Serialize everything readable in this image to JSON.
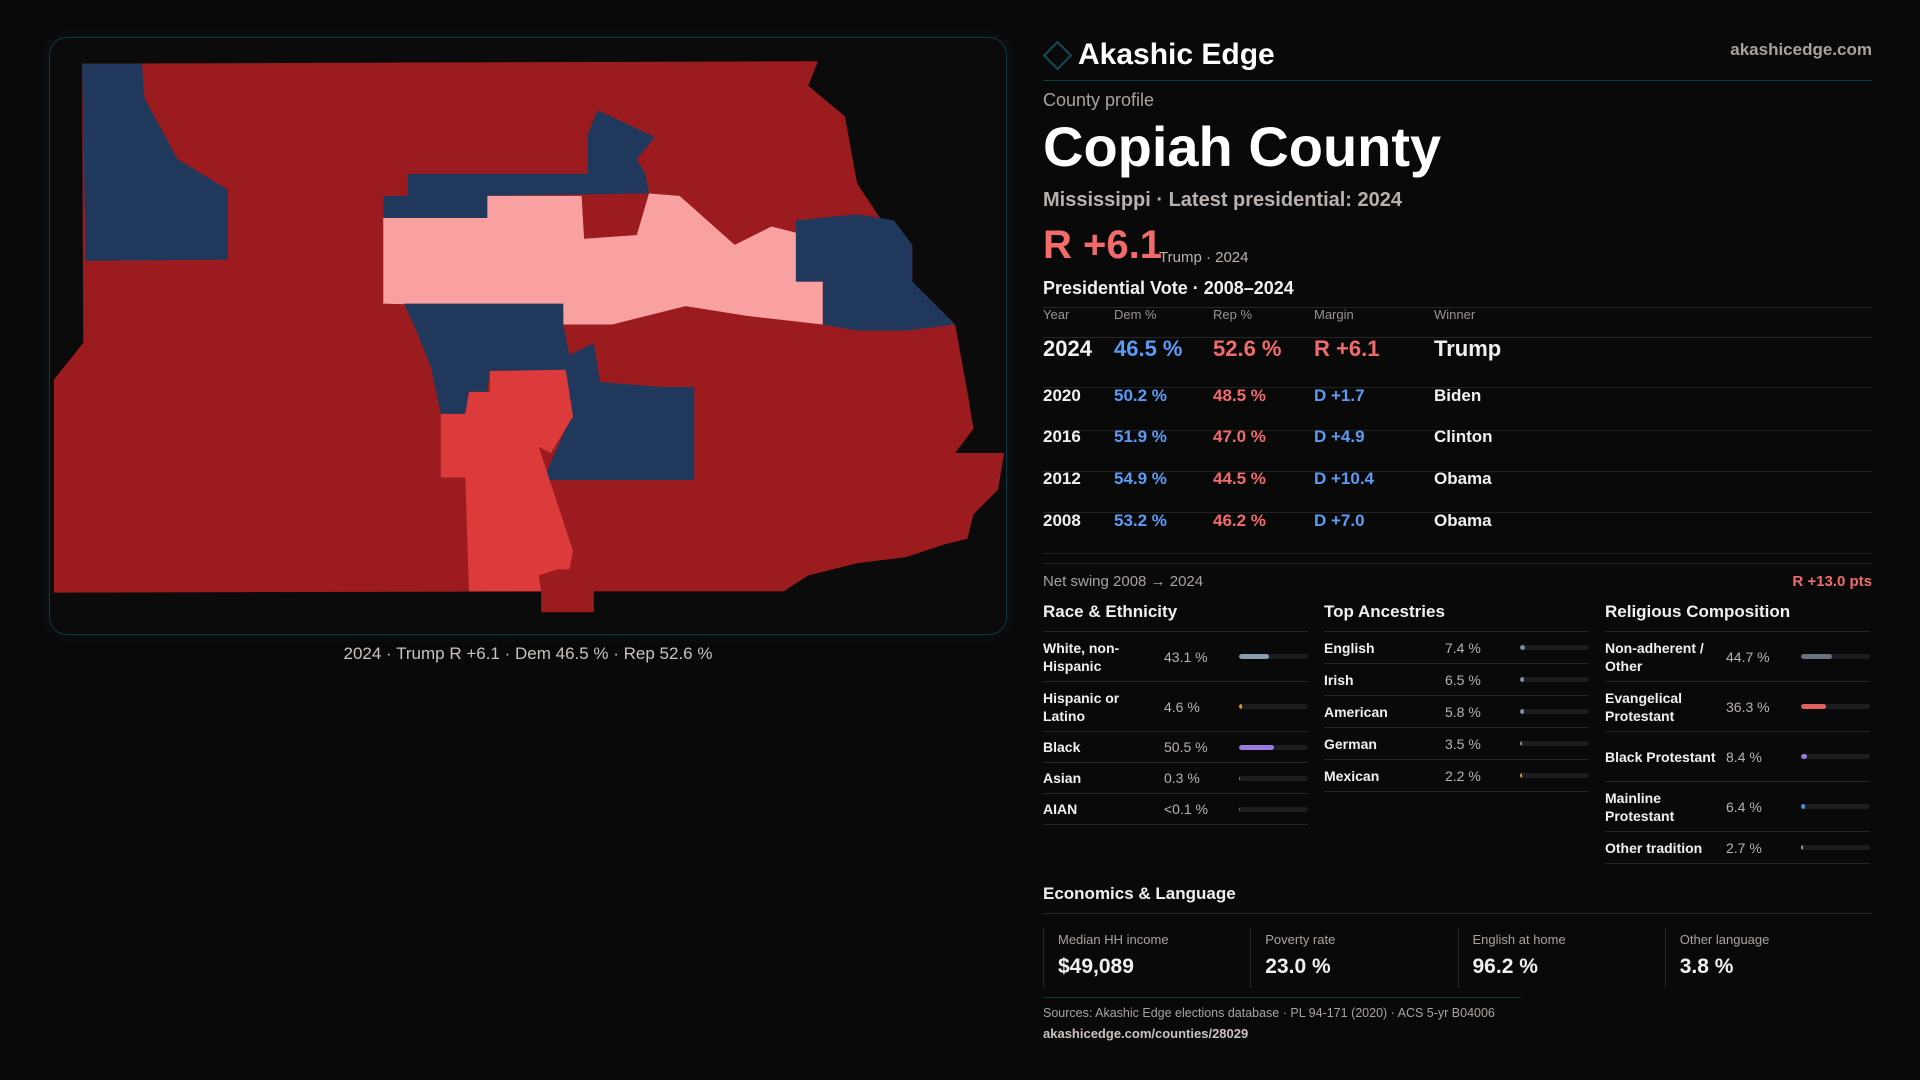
{
  "brand": {
    "name": "Akashic Edge",
    "site": "akashicedge.com",
    "logo_icon": "diamond-icon"
  },
  "profile": {
    "kicker": "County profile",
    "title": "Copiah County",
    "subtitle": "Mississippi · Latest presidential: 2024",
    "margin": "R +6.1",
    "margin_note": "Trump · 2024"
  },
  "vote": {
    "heading": "Presidential Vote · 2008–2024",
    "columns": [
      "Year",
      "Dem %",
      "Rep %",
      "Margin",
      "Winner"
    ],
    "rows": [
      {
        "year": "2024",
        "dem": "46.5 %",
        "rep": "52.6 %",
        "margin": "R +6.1",
        "winner": "Trump",
        "party": "R"
      },
      {
        "year": "2020",
        "dem": "50.2 %",
        "rep": "48.5 %",
        "margin": "D +1.7",
        "winner": "Biden",
        "party": "D"
      },
      {
        "year": "2016",
        "dem": "51.9 %",
        "rep": "47.0 %",
        "margin": "D +4.9",
        "winner": "Clinton",
        "party": "D"
      },
      {
        "year": "2012",
        "dem": "54.9 %",
        "rep": "44.5 %",
        "margin": "D +10.4",
        "winner": "Obama",
        "party": "D"
      },
      {
        "year": "2008",
        "dem": "53.2 %",
        "rep": "46.2 %",
        "margin": "D +7.0",
        "winner": "Obama",
        "party": "D"
      }
    ],
    "swing_label": "Net swing 2008 → 2024",
    "swing_value": "R +13.0 pts"
  },
  "sections": [
    {
      "title": "Race & Ethnicity",
      "rows": [
        {
          "name": "White, non-Hispanic",
          "value": "43.1 %",
          "pct": 43.1,
          "color": "#8a9bb0"
        },
        {
          "name": "Hispanic or Latino",
          "value": "4.6 %",
          "pct": 4.6,
          "color": "#e8961e"
        },
        {
          "name": "Black",
          "value": "50.5 %",
          "pct": 50.5,
          "color": "#9a7ce0"
        },
        {
          "name": "Asian",
          "value": "0.3 %",
          "pct": 0.3,
          "color": "#2bb58a"
        },
        {
          "name": "AIAN",
          "value": "<0.1 %",
          "pct": 0.05,
          "color": "#c0503a"
        }
      ]
    },
    {
      "title": "Top Ancestries",
      "rows": [
        {
          "name": "English",
          "value": "7.4 %",
          "pct": 7.4,
          "color": "#7d8ba0"
        },
        {
          "name": "Irish",
          "value": "6.5 %",
          "pct": 6.5,
          "color": "#7d8ba0"
        },
        {
          "name": "American",
          "value": "5.8 %",
          "pct": 5.8,
          "color": "#7d8ba0"
        },
        {
          "name": "German",
          "value": "3.5 %",
          "pct": 3.5,
          "color": "#7d8ba0"
        },
        {
          "name": "Mexican",
          "value": "2.2 %",
          "pct": 2.2,
          "color": "#e8961e"
        }
      ]
    },
    {
      "title": "Religious Composition",
      "rows": [
        {
          "name": "Non-adherent / Other",
          "value": "44.7 %",
          "pct": 44.7,
          "color": "#6b7280"
        },
        {
          "name": "Evangelical Protestant",
          "value": "36.3 %",
          "pct": 36.3,
          "color": "#e06060"
        },
        {
          "name": "Black Protestant",
          "value": "8.4 %",
          "pct": 8.4,
          "color": "#9a7ce0"
        },
        {
          "name": "Mainline Protestant",
          "value": "6.4 %",
          "pct": 6.4,
          "color": "#4a90e2"
        },
        {
          "name": "Other tradition",
          "value": "2.7 %",
          "pct": 2.7,
          "color": "#9ca3af"
        }
      ]
    }
  ],
  "economics": {
    "title": "Economics & Language",
    "stats": [
      {
        "label": "Median HH income",
        "value": "$49,089"
      },
      {
        "label": "Poverty rate",
        "value": "23.0 %"
      },
      {
        "label": "English at home",
        "value": "96.2 %"
      },
      {
        "label": "Other language",
        "value": "3.8 %"
      }
    ]
  },
  "sources": "Sources: Akashic Edge elections database · PL 94-171 (2020) · ACS 5-yr B04006",
  "url": "akashicedge.com/counties/28029",
  "map": {
    "caption": "2024 · Trump R +6.1 · Dem 46.5 % · Rep 52.6 %",
    "colors": {
      "safe_r": "#9b1b1e",
      "lean_r": "#dd3a3c",
      "tilt_r": "#f9a0a0",
      "dem": "#1f385c"
    }
  }
}
